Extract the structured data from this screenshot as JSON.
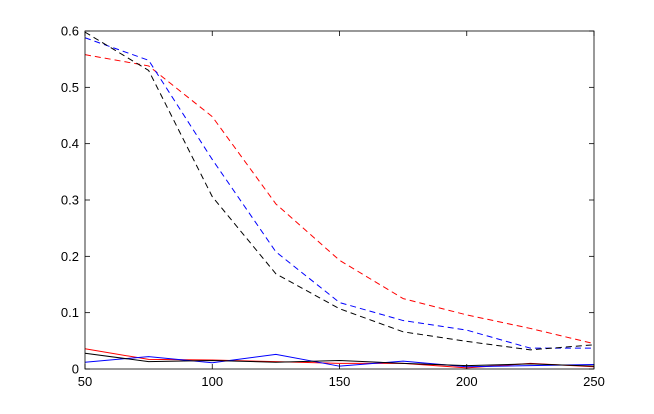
{
  "chart_data": {
    "type": "line",
    "title": "",
    "xlabel": "",
    "ylabel": "",
    "xlim": [
      50,
      250
    ],
    "ylim": [
      0,
      0.6
    ],
    "grid": false,
    "legend": "none",
    "x_ticks": [
      50,
      100,
      150,
      200,
      250
    ],
    "x_tick_labels": [
      "50",
      "100",
      "150",
      "200",
      "250"
    ],
    "y_ticks": [
      0,
      0.1,
      0.2,
      0.3,
      0.4,
      0.5,
      0.6
    ],
    "y_tick_labels": [
      "0",
      "0.1",
      "0.2",
      "0.3",
      "0.4",
      "0.5",
      "0.6"
    ],
    "x": [
      50,
      75,
      100,
      125,
      150,
      175,
      200,
      225,
      250
    ],
    "series": [
      {
        "color": "#ff0000",
        "style": "dashed",
        "values": [
          0.558,
          0.538,
          0.448,
          0.293,
          0.193,
          0.125,
          0.096,
          0.072,
          0.045
        ]
      },
      {
        "color": "#0000ff",
        "style": "dashed",
        "values": [
          0.588,
          0.548,
          0.372,
          0.208,
          0.118,
          0.086,
          0.069,
          0.037,
          0.037
        ]
      },
      {
        "color": "#000000",
        "style": "dashed",
        "values": [
          0.598,
          0.53,
          0.306,
          0.169,
          0.107,
          0.066,
          0.049,
          0.034,
          0.043
        ]
      },
      {
        "color": "#ff0000",
        "style": "solid",
        "values": [
          0.036,
          0.017,
          0.016,
          0.013,
          0.01,
          0.01,
          0.002,
          0.01,
          0.004
        ]
      },
      {
        "color": "#0000ff",
        "style": "solid",
        "values": [
          0.012,
          0.022,
          0.011,
          0.026,
          0.005,
          0.014,
          0.004,
          0.006,
          0.008
        ]
      },
      {
        "color": "#000000",
        "style": "solid",
        "values": [
          0.028,
          0.013,
          0.015,
          0.012,
          0.015,
          0.01,
          0.006,
          0.009,
          0.005
        ]
      }
    ]
  }
}
